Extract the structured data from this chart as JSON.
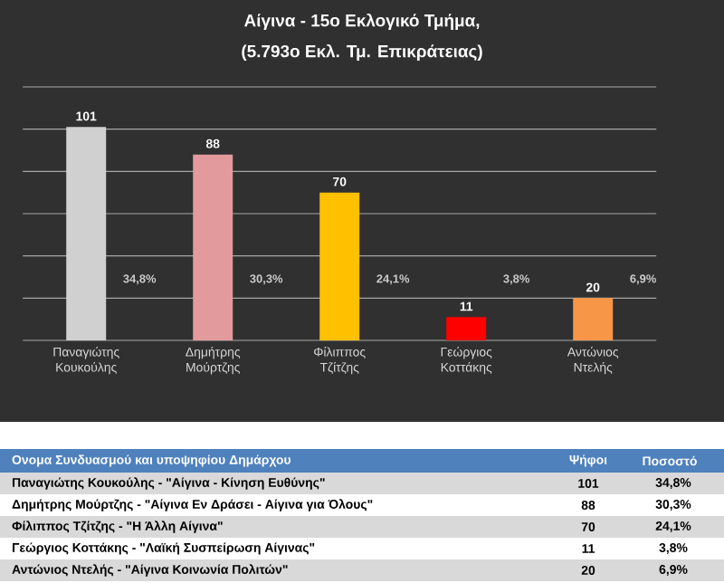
{
  "chart_data": {
    "type": "bar",
    "title": "Αίγινα - 15ο Εκλογικό Τμήμα,",
    "subtitle": "(5.793ο Εκλ. Τμ. Επικράτειας)",
    "categories": [
      "Παναγιώτης Κουκούλης",
      "Δημήτρης Μούρτζης",
      "Φίλιππος Τζίτζης",
      "Γεώργιος Κοττάκης",
      "Αντώνιος Ντελής"
    ],
    "values": [
      101,
      88,
      70,
      11,
      20
    ],
    "colors": [
      "#d0d0d0",
      "#e39a9c",
      "#ffc000",
      "#ff0000",
      "#f79646"
    ],
    "data_labels": true,
    "ylim": [
      0,
      120
    ],
    "yticks": [
      {
        "value": 0,
        "label": null
      },
      {
        "value": 20,
        "label": null
      },
      {
        "value": 40,
        "label": null
      },
      {
        "value": 60,
        "label": null
      },
      {
        "value": 80,
        "label": null
      },
      {
        "value": 100,
        "label": null
      },
      {
        "value": 120,
        "label": null
      }
    ],
    "tick_labels": "x",
    "grid": "y",
    "annotations": [
      "34,8%",
      "30,3%",
      "24,1%",
      "3,8%",
      "6,9%",
      "Ονομα Συνδυασμού και υποψηφίου Δημάρχου",
      "Ψήφοι",
      "Ποσοστό",
      "Παναγιώτης Κουκούλης - \"Αίγινα - Κίνηση Ευθύνης\"",
      "Δημήτρης Μούρτζης - \"Αίγινα  Εν Δράσει - Αίγινα για Όλους\"",
      "Φίλιππος Τζίτζης - \"Η Άλλη Αίγινα\"",
      "Γεώργιος Κοττάκης - \"Λαϊκή Συσπείρωση Αίγινας\"",
      "Αντώνιος Ντελής - \"Αίγινα Κοινωνία Πολιτών\"",
      "101",
      "88",
      "70",
      "11",
      "20"
    ]
  }
}
